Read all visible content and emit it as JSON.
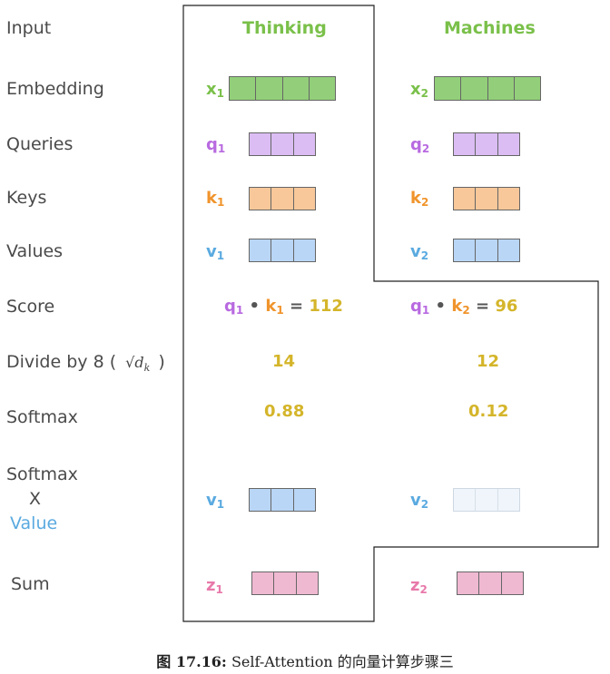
{
  "rows": {
    "input": "Input",
    "embedding": "Embedding",
    "queries": "Queries",
    "keys": "Keys",
    "values": "Values",
    "score": "Score",
    "divide": "Divide by 8 (",
    "divide_close": ")",
    "softmax": "Softmax",
    "softmax_value_1": "Softmax",
    "softmax_value_2": "X",
    "softmax_value_3": "Value",
    "sum": "Sum"
  },
  "sqrt_dk": "√d",
  "sqrt_dk_sub": "k",
  "words": [
    "Thinking",
    "Machines"
  ],
  "vars": {
    "x": "x",
    "q": "q",
    "k": "k",
    "v": "v",
    "z": "z",
    "i1": "1",
    "i2": "2"
  },
  "score_ops": {
    "dot": "•",
    "eq": "="
  },
  "scores": [
    "112",
    "96"
  ],
  "divided": [
    "14",
    "12"
  ],
  "softmax": [
    "0.88",
    "0.12"
  ],
  "caption": {
    "label": "图 17.16:",
    "text": "Self-Attention 的向量计算步骤三"
  },
  "colors": {
    "green": "#7ac04a",
    "purple": "#b86ae0",
    "orange": "#f0942c",
    "blue": "#5aaae0",
    "pink": "#e879aa",
    "yellow": "#d4b52a"
  }
}
